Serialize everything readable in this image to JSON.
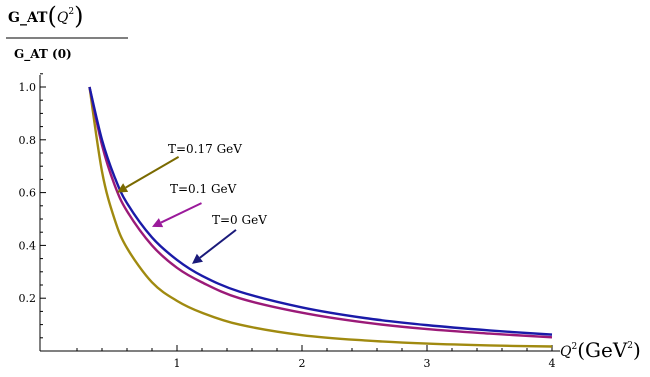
{
  "chart_data": {
    "type": "line",
    "ylabel": {
      "num_prefix": "G_AT",
      "num_var": "Q",
      "num_sup": "2",
      "den": "G_AT (0)"
    },
    "xlabel": {
      "var": "Q",
      "sup": "2",
      "unit_open": "(GeV",
      "unit_sup": "2",
      "unit_close": ")"
    },
    "xlim": [
      0,
      4
    ],
    "ylim": [
      0,
      1.05
    ],
    "xticks": [
      1,
      2,
      3,
      4
    ],
    "yticks": [
      0.2,
      0.4,
      0.6,
      0.8,
      1.0
    ],
    "yticklabels": [
      "0.2",
      "0.4",
      "0.6",
      "0.8",
      "1.0"
    ],
    "grid": false,
    "series": [
      {
        "name": "T=0 GeV",
        "color": "#1a1aa8",
        "x": [
          0.3,
          0.4,
          0.5,
          0.6,
          0.8,
          1.0,
          1.2,
          1.5,
          2.0,
          2.5,
          3.0,
          3.5,
          4.0
        ],
        "y": [
          1.0,
          0.8,
          0.66,
          0.56,
          0.43,
          0.345,
          0.285,
          0.225,
          0.165,
          0.125,
          0.098,
          0.078,
          0.062
        ]
      },
      {
        "name": "T=0.1 GeV",
        "color": "#9b1a78",
        "x": [
          0.3,
          0.4,
          0.5,
          0.6,
          0.8,
          1.0,
          1.2,
          1.5,
          2.0,
          2.5,
          3.0,
          3.5,
          4.0
        ],
        "y": [
          1.0,
          0.78,
          0.63,
          0.53,
          0.4,
          0.315,
          0.26,
          0.2,
          0.145,
          0.108,
          0.083,
          0.066,
          0.052
        ]
      },
      {
        "name": "T=0.17 GeV",
        "color": "#a08a10",
        "x": [
          0.3,
          0.4,
          0.5,
          0.6,
          0.8,
          1.0,
          1.2,
          1.5,
          2.0,
          2.5,
          3.0,
          3.5,
          4.0
        ],
        "y": [
          1.0,
          0.68,
          0.5,
          0.39,
          0.26,
          0.19,
          0.145,
          0.1,
          0.06,
          0.04,
          0.028,
          0.021,
          0.017
        ]
      }
    ],
    "annotations": [
      {
        "label": "T=0.17 GeV",
        "series": 2,
        "color": "#7a6a00",
        "arrow_to": [
          0.52,
          0.6
        ]
      },
      {
        "label": "T=0.1 GeV",
        "series": 1,
        "color": "#9b1a9b",
        "arrow_to": [
          0.8,
          0.47
        ]
      },
      {
        "label": "T=0 GeV",
        "series": 0,
        "color": "#1a1a7a",
        "arrow_to": [
          1.12,
          0.33
        ]
      }
    ]
  }
}
